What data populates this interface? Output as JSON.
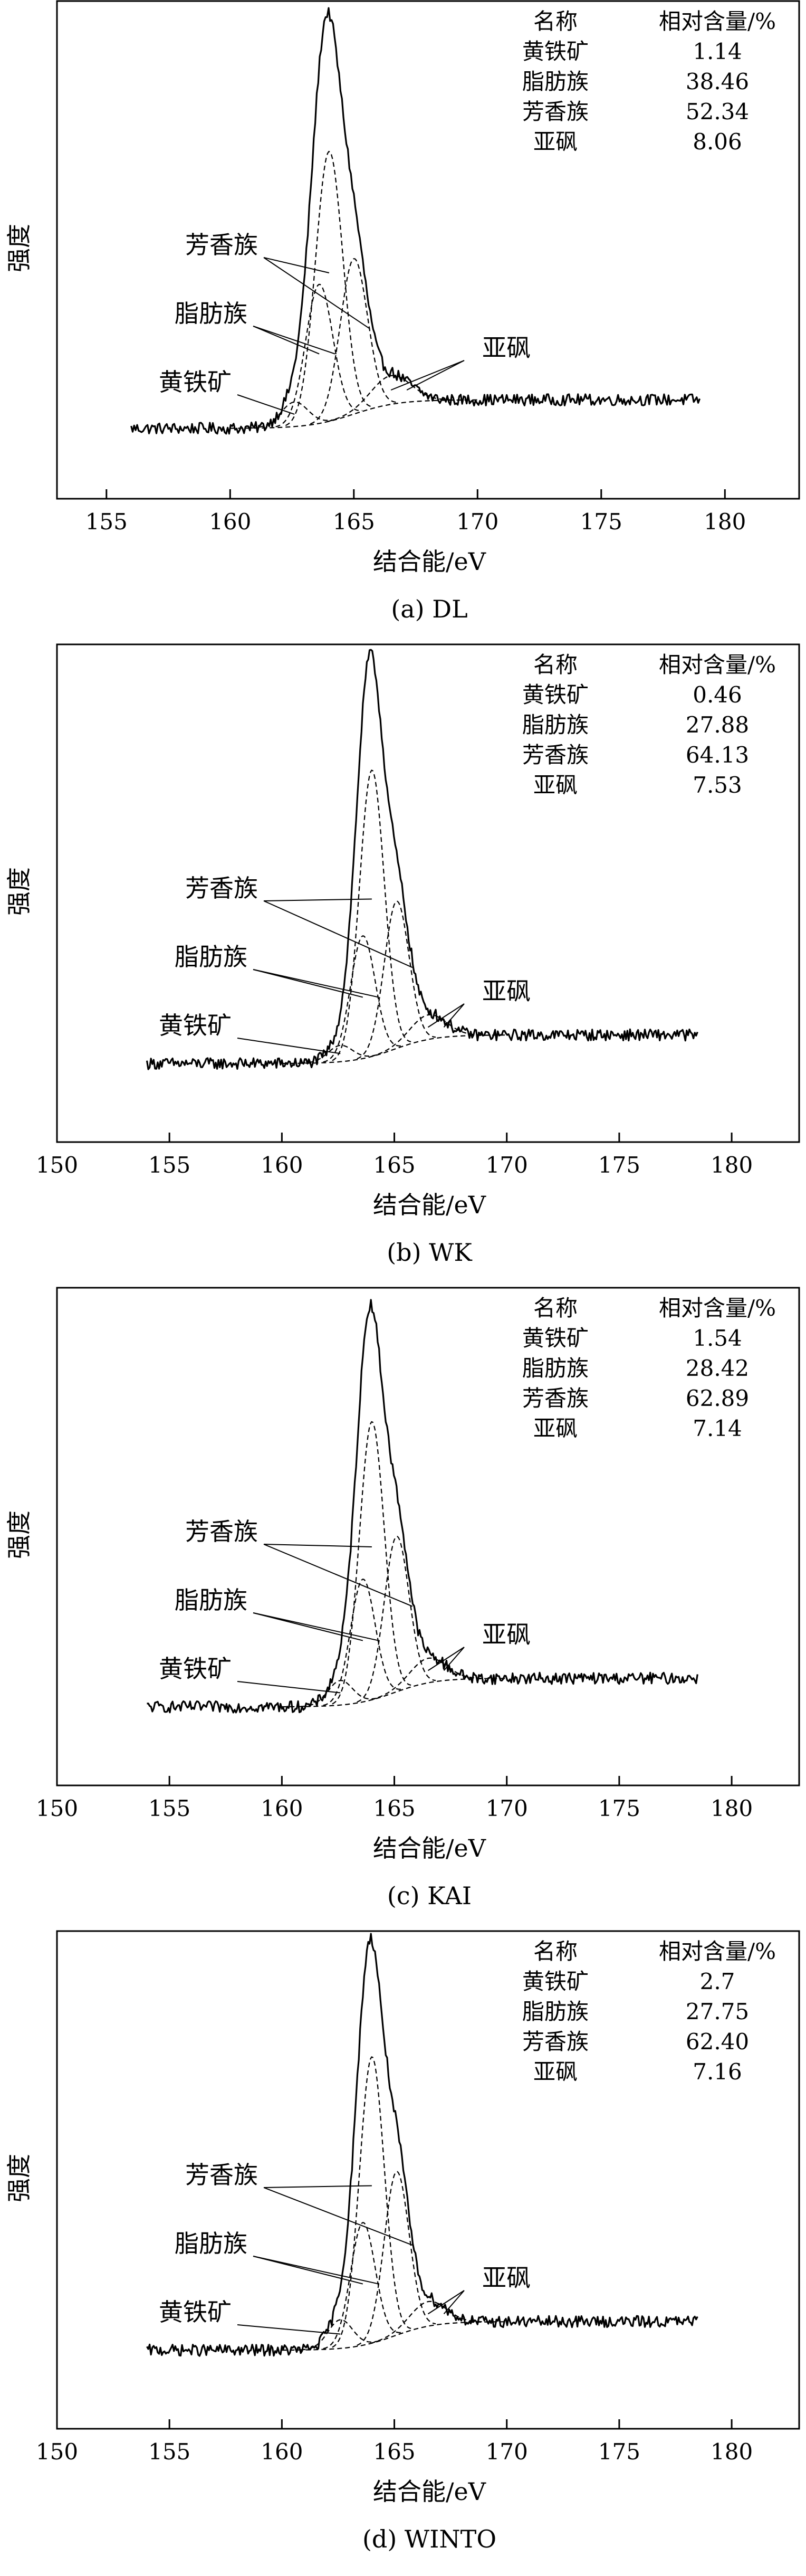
{
  "figure": {
    "panels": [
      {
        "caption": "(a) DL"
      },
      {
        "caption": "(b) WK"
      },
      {
        "caption": "(c) KAI"
      },
      {
        "caption": "(d) WINTO"
      }
    ]
  },
  "chart_data": [
    {
      "type": "line",
      "caption": "(a) DL",
      "xlabel": "结合能/eV",
      "ylabel": "强度",
      "xlim": [
        153,
        183
      ],
      "xticks": [
        155,
        160,
        165,
        170,
        175,
        180
      ],
      "table": {
        "headers": [
          "名称",
          "相对含量/%"
        ],
        "rows": [
          [
            "黄铁矿",
            "1.14"
          ],
          [
            "脂肪族",
            "38.46"
          ],
          [
            "芳香族",
            "52.34"
          ],
          [
            "亚砜",
            "8.06"
          ]
        ]
      },
      "annotations": [
        "芳香族",
        "脂肪族",
        "黄铁矿",
        "亚砜"
      ],
      "x_range": [
        156,
        179
      ],
      "components": [
        {
          "name": "黄铁矿",
          "center": 162.6,
          "height": 0.06,
          "sigma": 0.55
        },
        {
          "name": "脂肪族",
          "center": 163.6,
          "height": 0.34,
          "sigma": 0.55
        },
        {
          "name": "芳香族",
          "center": 164.0,
          "height": 0.66,
          "sigma": 0.55
        },
        {
          "name": "芳香族",
          "center": 165.0,
          "height": 0.38,
          "sigma": 0.55
        },
        {
          "name": "亚砜",
          "center": 166.5,
          "height": 0.07,
          "sigma": 0.8
        }
      ],
      "baseline": {
        "start": 0.03,
        "end": 0.1,
        "step_center": 165.0
      }
    },
    {
      "type": "line",
      "caption": "(b) WK",
      "xlabel": "结合能/eV",
      "ylabel": "强度",
      "xlim": [
        150,
        183
      ],
      "xticks": [
        150,
        155,
        160,
        165,
        170,
        175,
        180
      ],
      "table": {
        "headers": [
          "名称",
          "相对含量/%"
        ],
        "rows": [
          [
            "黄铁矿",
            "0.46"
          ],
          [
            "脂肪族",
            "27.88"
          ],
          [
            "芳香族",
            "64.13"
          ],
          [
            "亚砜",
            "7.53"
          ]
        ]
      },
      "annotations": [
        "芳香族",
        "脂肪族",
        "黄铁矿",
        "亚砜"
      ],
      "x_range": [
        154,
        178.5
      ],
      "components": [
        {
          "name": "黄铁矿",
          "center": 162.6,
          "height": 0.04,
          "sigma": 0.55
        },
        {
          "name": "脂肪族",
          "center": 163.6,
          "height": 0.3,
          "sigma": 0.55
        },
        {
          "name": "芳香族",
          "center": 164.0,
          "height": 0.7,
          "sigma": 0.55
        },
        {
          "name": "芳香族",
          "center": 165.1,
          "height": 0.36,
          "sigma": 0.55
        },
        {
          "name": "亚砜",
          "center": 166.5,
          "height": 0.06,
          "sigma": 0.8
        }
      ],
      "baseline": {
        "start": 0.05,
        "end": 0.12,
        "step_center": 165.0
      }
    },
    {
      "type": "line",
      "caption": "(c) KAI",
      "xlabel": "结合能/eV",
      "ylabel": "强度",
      "xlim": [
        150,
        183
      ],
      "xticks": [
        150,
        155,
        160,
        165,
        170,
        175,
        180
      ],
      "table": {
        "headers": [
          "名称",
          "相对含量/%"
        ],
        "rows": [
          [
            "黄铁矿",
            "1.54"
          ],
          [
            "脂肪族",
            "28.42"
          ],
          [
            "芳香族",
            "62.89"
          ],
          [
            "亚砜",
            "7.14"
          ]
        ]
      },
      "annotations": [
        "芳香族",
        "脂肪族",
        "黄铁矿",
        "亚砜"
      ],
      "x_range": [
        154,
        178.5
      ],
      "components": [
        {
          "name": "黄铁矿",
          "center": 162.6,
          "height": 0.06,
          "sigma": 0.55
        },
        {
          "name": "脂肪族",
          "center": 163.6,
          "height": 0.3,
          "sigma": 0.55
        },
        {
          "name": "芳香族",
          "center": 164.0,
          "height": 0.68,
          "sigma": 0.55
        },
        {
          "name": "芳香族",
          "center": 165.1,
          "height": 0.38,
          "sigma": 0.55
        },
        {
          "name": "亚砜",
          "center": 166.5,
          "height": 0.06,
          "sigma": 0.8
        }
      ],
      "baseline": {
        "start": 0.05,
        "end": 0.12,
        "step_center": 165.0
      }
    },
    {
      "type": "line",
      "caption": "(d) WINTO",
      "xlabel": "结合能/eV",
      "ylabel": "强度",
      "xlim": [
        150,
        183
      ],
      "xticks": [
        150,
        155,
        160,
        165,
        170,
        175,
        180
      ],
      "table": {
        "headers": [
          "名称",
          "相对含量/%"
        ],
        "rows": [
          [
            "黄铁矿",
            "2.7"
          ],
          [
            "脂肪族",
            "27.75"
          ],
          [
            "芳香族",
            "62.40"
          ],
          [
            "亚砜",
            "7.16"
          ]
        ]
      },
      "annotations": [
        "芳香族",
        "脂肪族",
        "黄铁矿",
        "亚砜"
      ],
      "x_range": [
        154,
        178.5
      ],
      "components": [
        {
          "name": "黄铁矿",
          "center": 162.6,
          "height": 0.07,
          "sigma": 0.55
        },
        {
          "name": "脂肪族",
          "center": 163.6,
          "height": 0.3,
          "sigma": 0.55
        },
        {
          "name": "芳香族",
          "center": 164.0,
          "height": 0.7,
          "sigma": 0.55
        },
        {
          "name": "芳香族",
          "center": 165.1,
          "height": 0.4,
          "sigma": 0.55
        },
        {
          "name": "亚砜",
          "center": 166.5,
          "height": 0.06,
          "sigma": 0.8
        }
      ],
      "baseline": {
        "start": 0.05,
        "end": 0.12,
        "step_center": 165.0
      }
    }
  ]
}
